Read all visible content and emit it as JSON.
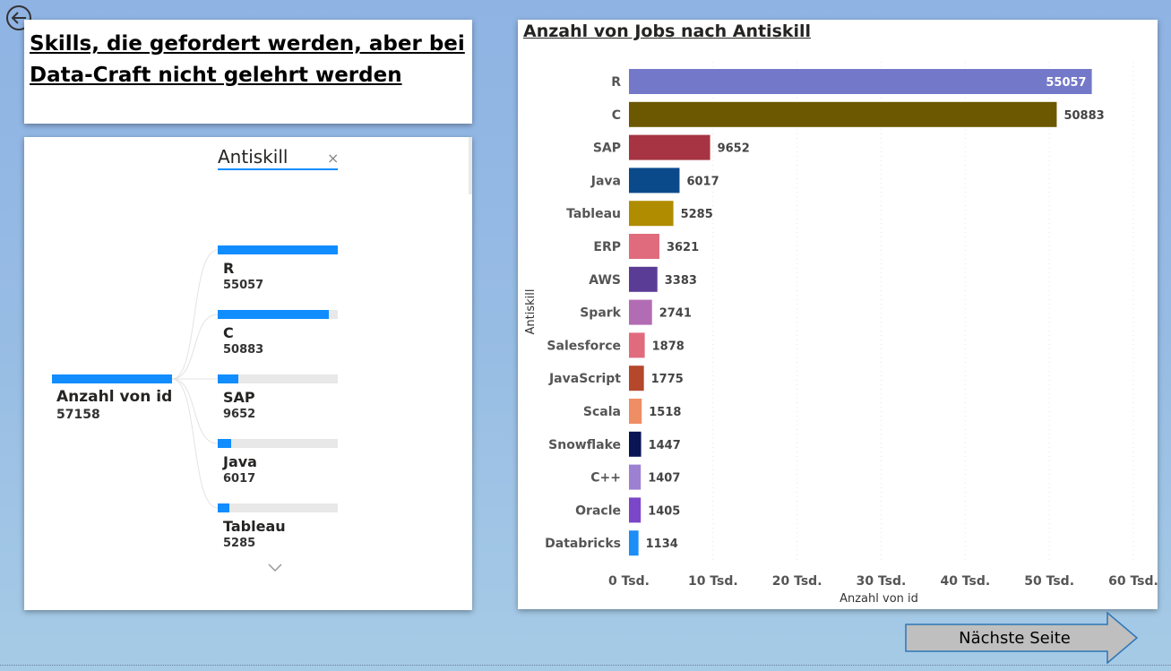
{
  "title": "Skills, die gefordert werden, aber bei Data-Craft nicht gelehrt werden",
  "tree": {
    "field_label": "Antiskill",
    "remove_glyph": "×",
    "root": {
      "label": "Anzahl von id",
      "value": "57158"
    },
    "nodes": [
      {
        "label": "R",
        "value": "55057",
        "fraction": 1.0
      },
      {
        "label": "C",
        "value": "50883",
        "fraction": 0.924
      },
      {
        "label": "SAP",
        "value": "9652",
        "fraction": 0.175
      },
      {
        "label": "Java",
        "value": "6017",
        "fraction": 0.109
      },
      {
        "label": "Tableau",
        "value": "5285",
        "fraction": 0.096
      }
    ],
    "bar_color": "#118dff",
    "scroll_icon": "chevron-down-icon"
  },
  "chart_data": {
    "type": "bar",
    "orientation": "horizontal",
    "title": "Anzahl von Jobs nach Antiskill",
    "xlabel": "Anzahl von id",
    "ylabel": "Antiskill",
    "categories": [
      "R",
      "C",
      "SAP",
      "Java",
      "Tableau",
      "ERP",
      "AWS",
      "Spark",
      "Salesforce",
      "JavaScript",
      "Scala",
      "Snowflake",
      "C++",
      "Oracle",
      "Databricks"
    ],
    "values": [
      55057,
      50883,
      9652,
      6017,
      5285,
      3621,
      3383,
      2741,
      1878,
      1775,
      1518,
      1447,
      1407,
      1405,
      1134
    ],
    "colors": [
      "#7478c9",
      "#6b5800",
      "#a63443",
      "#0b4a8a",
      "#b08c00",
      "#e06b7d",
      "#5a3c96",
      "#b26cb4",
      "#e06b7d",
      "#b5472b",
      "#ef8d64",
      "#0a1556",
      "#9d80d2",
      "#7c46c9",
      "#1c8ef5"
    ],
    "xlim": [
      0,
      60000
    ],
    "xticks": [
      0,
      10000,
      20000,
      30000,
      40000,
      50000,
      60000
    ],
    "xtick_labels": [
      "0 Tsd.",
      "10 Tsd.",
      "20 Tsd.",
      "30 Tsd.",
      "40 Tsd.",
      "50 Tsd.",
      "60 Tsd."
    ],
    "grid": true
  },
  "next_button": {
    "label": "Nächste Seite"
  },
  "back_icon": "back-arrow-icon"
}
